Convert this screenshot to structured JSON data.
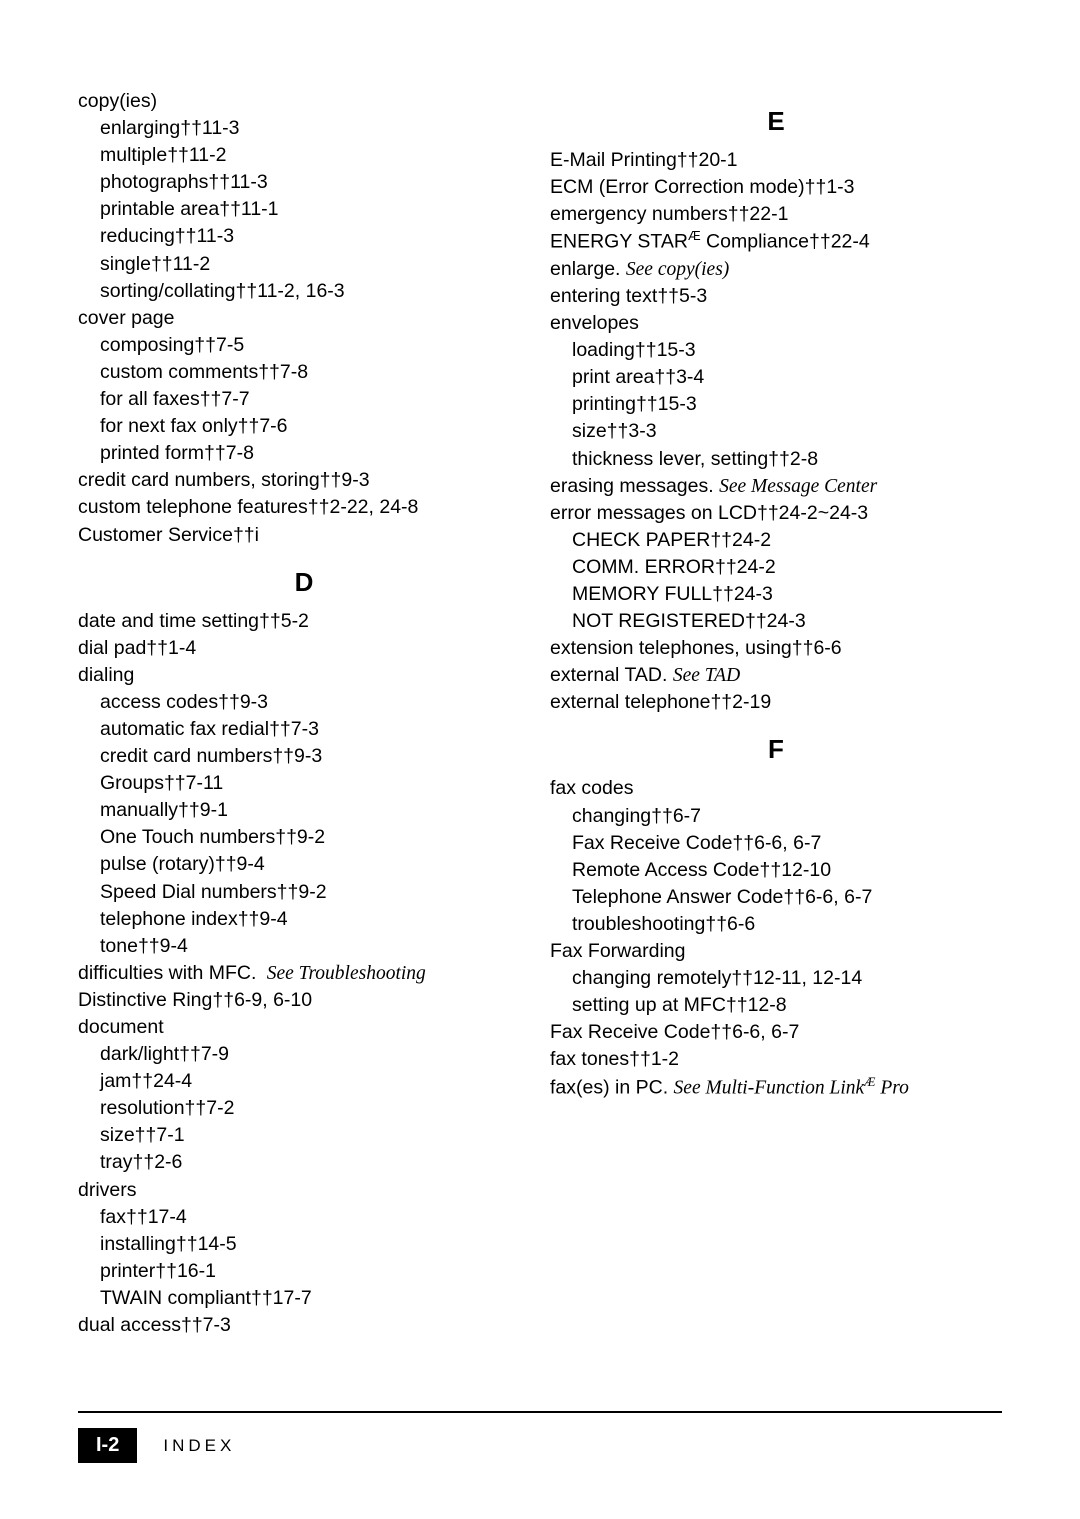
{
  "left_column": {
    "entries": [
      {
        "text": "copy(ies)",
        "indent": 0
      },
      {
        "text": "enlarging††11-3",
        "indent": 1
      },
      {
        "text": "multiple††11-2",
        "indent": 1
      },
      {
        "text": "photographs††11-3",
        "indent": 1
      },
      {
        "text": "printable area††11-1",
        "indent": 1
      },
      {
        "text": "reducing††11-3",
        "indent": 1
      },
      {
        "text": "single††11-2",
        "indent": 1
      },
      {
        "text": "sorting/collating††11-2, 16-3",
        "indent": 1
      },
      {
        "text": "cover page",
        "indent": 0
      },
      {
        "text": "composing††7-5",
        "indent": 1
      },
      {
        "text": "custom comments††7-8",
        "indent": 1
      },
      {
        "text": "for all faxes††7-7",
        "indent": 1
      },
      {
        "text": "for next fax only††7-6",
        "indent": 1
      },
      {
        "text": "printed form††7-8",
        "indent": 1
      },
      {
        "text": "credit card numbers, storing††9-3",
        "indent": 0
      },
      {
        "text": "custom telephone features††2-22, 24-8",
        "indent": 0
      },
      {
        "text": "Customer Service††i",
        "indent": 0
      }
    ],
    "letter_d": "D",
    "entries_d": [
      {
        "text": "date and time setting††5-2",
        "indent": 0
      },
      {
        "text": "dial pad††1-4",
        "indent": 0
      },
      {
        "text": "dialing",
        "indent": 0
      },
      {
        "text": "access codes††9-3",
        "indent": 1
      },
      {
        "text": "automatic fax redial††7-3",
        "indent": 1
      },
      {
        "text": "credit card numbers††9-3",
        "indent": 1
      },
      {
        "text": "Groups††7-11",
        "indent": 1
      },
      {
        "text": "manually††9-1",
        "indent": 1
      },
      {
        "text": "One Touch numbers††9-2",
        "indent": 1
      },
      {
        "text": "pulse (rotary)††9-4",
        "indent": 1
      },
      {
        "text": "Speed Dial numbers††9-2",
        "indent": 1
      },
      {
        "text": "telephone index††9-4",
        "indent": 1
      },
      {
        "text": "tone††9-4",
        "indent": 1
      },
      {
        "prefix": "difficulties with MFC. ",
        "italic": " See Troubleshooting",
        "indent": 0
      },
      {
        "text": "Distinctive Ring††6-9, 6-10",
        "indent": 0
      },
      {
        "text": "document",
        "indent": 0
      },
      {
        "text": "dark/light††7-9",
        "indent": 1
      },
      {
        "text": "jam††24-4",
        "indent": 1
      },
      {
        "text": "resolution††7-2",
        "indent": 1
      },
      {
        "text": "size††7-1",
        "indent": 1
      },
      {
        "text": "tray††2-6",
        "indent": 1
      },
      {
        "text": "drivers",
        "indent": 0
      },
      {
        "text": "fax††17-4",
        "indent": 1
      },
      {
        "text": "installing††14-5",
        "indent": 1
      },
      {
        "text": "printer††16-1",
        "indent": 1
      },
      {
        "text": "TWAIN compliant††17-7",
        "indent": 1
      },
      {
        "text": "dual access††7-3",
        "indent": 0
      }
    ]
  },
  "right_column": {
    "letter_e": "E",
    "entries_e": [
      {
        "text": "E-Mail Printing††20-1",
        "indent": 0
      },
      {
        "text": "ECM (Error Correction mode)††1-3",
        "indent": 0
      },
      {
        "text": "emergency numbers††22-1",
        "indent": 0
      },
      {
        "prefix": "ENERGY STAR",
        "sup": "Æ",
        "suffix": " Compliance††22-4",
        "indent": 0
      },
      {
        "prefix": "enlarge. ",
        "italic": "See copy(ies)",
        "indent": 0
      },
      {
        "text": "entering text††5-3",
        "indent": 0
      },
      {
        "text": "envelopes",
        "indent": 0
      },
      {
        "text": "loading††15-3",
        "indent": 1
      },
      {
        "text": "print area††3-4",
        "indent": 1
      },
      {
        "text": "printing††15-3",
        "indent": 1
      },
      {
        "text": "size††3-3",
        "indent": 1
      },
      {
        "text": "thickness lever, setting††2-8",
        "indent": 1
      },
      {
        "prefix": "erasing messages. ",
        "italic": "See Message Center",
        "indent": 0
      },
      {
        "text": "error messages on LCD††24-2~24-3",
        "indent": 0
      },
      {
        "text": "CHECK PAPER††24-2",
        "indent": 1
      },
      {
        "text": "COMM. ERROR††24-2",
        "indent": 1
      },
      {
        "text": "MEMORY FULL††24-3",
        "indent": 1
      },
      {
        "text": "NOT REGISTERED††24-3",
        "indent": 1
      },
      {
        "text": "extension telephones, using††6-6",
        "indent": 0
      },
      {
        "prefix": "external TAD. ",
        "italic": "See TAD",
        "indent": 0
      },
      {
        "text": "external telephone††2-19",
        "indent": 0
      }
    ],
    "letter_f": "F",
    "entries_f": [
      {
        "text": "fax codes",
        "indent": 0
      },
      {
        "text": "changing††6-7",
        "indent": 1
      },
      {
        "text": "Fax Receive Code††6-6, 6-7",
        "indent": 1
      },
      {
        "text": "Remote Access Code††12-10",
        "indent": 1
      },
      {
        "text": "Telephone Answer Code††6-6, 6-7",
        "indent": 1
      },
      {
        "text": "troubleshooting††6-6",
        "indent": 1
      },
      {
        "text": "Fax Forwarding",
        "indent": 0
      },
      {
        "text": "changing remotely††12-11, 12-14",
        "indent": 1
      },
      {
        "text": "setting up at MFC††12-8",
        "indent": 1
      },
      {
        "text": "Fax Receive Code††6-6, 6-7",
        "indent": 0
      },
      {
        "text": "fax tones††1-2",
        "indent": 0
      },
      {
        "prefix": "fax(es) in PC. ",
        "italic": "See Multi-Function Link",
        "sup": "Æ",
        "italic2": " Pro",
        "indent": 0
      }
    ]
  },
  "footer": {
    "page": "I-2",
    "label": "INDEX"
  }
}
